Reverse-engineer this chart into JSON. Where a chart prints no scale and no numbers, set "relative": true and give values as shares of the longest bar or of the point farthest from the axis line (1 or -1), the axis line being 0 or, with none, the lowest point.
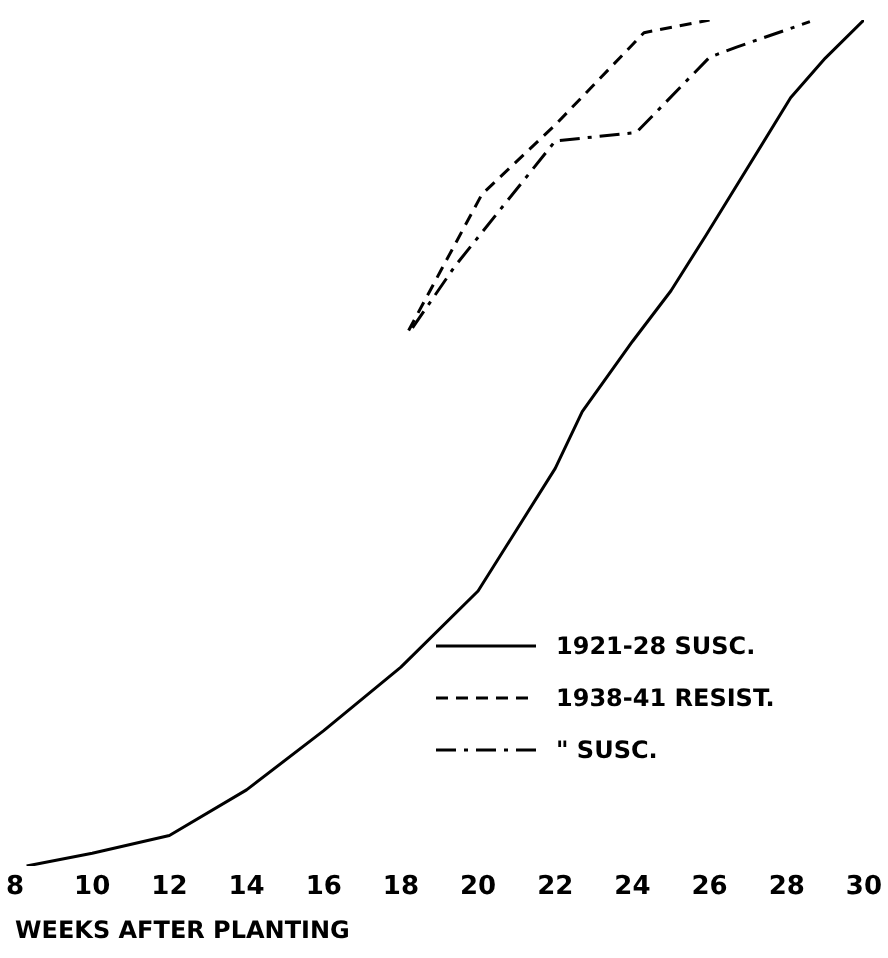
{
  "chart_data": {
    "type": "line",
    "relative": true,
    "xlabel": "WEEKS AFTER PLANTING",
    "xlim": [
      8,
      30
    ],
    "xticks": [
      8,
      10,
      12,
      14,
      16,
      18,
      20,
      22,
      24,
      26,
      28,
      30
    ],
    "grid": false,
    "legend": "bottom right",
    "marker": "none",
    "series": [
      {
        "name": "1921-28 SUSC.",
        "color": "#000000",
        "line_style": "solid",
        "x": [
          8.3,
          10,
          12,
          14,
          16,
          18,
          20,
          22,
          22.7,
          24,
          25,
          25.9,
          28.1,
          29,
          30
        ],
        "values": [
          0,
          0.015,
          0.036,
          0.09,
          0.16,
          0.235,
          0.325,
          0.47,
          0.537,
          0.62,
          0.68,
          0.745,
          0.908,
          0.955,
          1
        ]
      },
      {
        "name": "1938-41 RESIST.",
        "color": "#000000",
        "line_style": "dashed",
        "x": [
          18.2,
          20.1,
          22,
          24.3,
          26
        ],
        "values": [
          0.633,
          0.794,
          0.876,
          0.985,
          1
        ]
      },
      {
        "name": "\" SUSC.",
        "color": "#000000",
        "line_style": "dashdot",
        "x": [
          18.3,
          19.4,
          22,
          24.1,
          26,
          26.7,
          28.6
        ],
        "values": [
          0.636,
          0.709,
          0.857,
          0.867,
          0.956,
          0.968,
          0.998
        ]
      }
    ]
  }
}
